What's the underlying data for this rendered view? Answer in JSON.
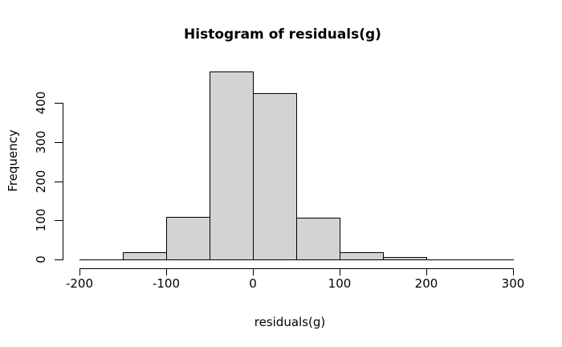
{
  "page": {
    "background": "#ffffff"
  },
  "chart_data": {
    "type": "histogram",
    "title": "Histogram of residuals(g)",
    "xlabel": "residuals(g)",
    "ylabel": "Frequency",
    "breaks": [
      -200,
      -150,
      -100,
      -50,
      0,
      50,
      100,
      150,
      200,
      250,
      300
    ],
    "counts": [
      0,
      20,
      110,
      480,
      425,
      107,
      20,
      7,
      0,
      0
    ],
    "x_ticks": [
      -200,
      -100,
      0,
      100,
      200,
      300
    ],
    "y_ticks": [
      0,
      100,
      200,
      300,
      400
    ],
    "xlim": [
      -200,
      300
    ],
    "ylim": [
      0,
      480
    ],
    "grid": false,
    "bar_fill": "#d3d3d3",
    "bar_border": "#000000",
    "axis_color": "#000000",
    "text_color": "#000000"
  }
}
